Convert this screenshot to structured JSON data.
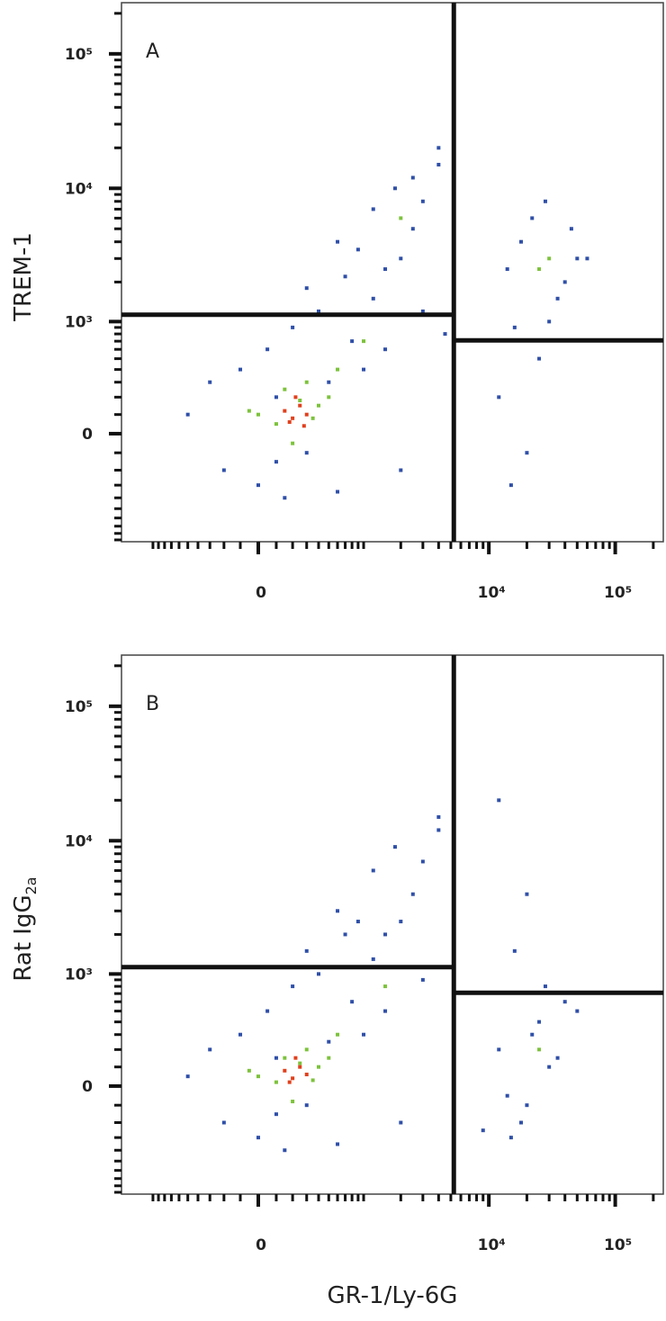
{
  "chart_data": [
    {
      "type": "scatter",
      "panel": "A",
      "ylabel": "TREM-1",
      "xscale": "biexponential",
      "yscale": "biexponential",
      "xlim": [
        -1800,
        240000
      ],
      "ylim": [
        -930,
        240000
      ],
      "xticks": [
        0,
        {
          "value": 10000,
          "label": "10⁴"
        },
        {
          "value": 100000,
          "label": "10⁵"
        }
      ],
      "yticks": [
        0,
        {
          "value": 1000,
          "label": "10³"
        },
        {
          "value": 10000,
          "label": "10⁴"
        },
        {
          "value": 100000,
          "label": "10⁵"
        }
      ],
      "xminor": [
        -1000,
        -900,
        -800,
        -700,
        -600,
        -500,
        -400,
        -300,
        -200,
        -100,
        100,
        200,
        300,
        400,
        500,
        600,
        700,
        800,
        900,
        1000,
        2000,
        3000,
        4000,
        5000,
        6000,
        7000,
        8000,
        9000,
        20000,
        30000,
        40000,
        50000,
        60000,
        70000,
        80000,
        90000,
        200000
      ],
      "yminor": [
        -900,
        -800,
        -700,
        -600,
        -500,
        -400,
        -300,
        -200,
        -100,
        100,
        200,
        300,
        400,
        500,
        600,
        700,
        800,
        900,
        2000,
        3000,
        4000,
        5000,
        6000,
        7000,
        8000,
        9000,
        20000,
        30000,
        40000,
        50000,
        60000,
        70000,
        80000,
        90000,
        200000
      ],
      "gates": {
        "x": 5280,
        "y_left": 1130,
        "y_right": 711
      },
      "series": [
        {
          "color": "#2f4fa8",
          "x": [
            -500,
            -200,
            -100,
            0,
            50,
            100,
            150,
            200,
            300,
            400,
            500,
            600,
            800,
            1000,
            1200,
            1500,
            2000,
            2500,
            3000,
            4000,
            -300,
            100,
            300,
            700,
            1500,
            2000,
            3000,
            4000,
            4500,
            600,
            900,
            1200,
            1800,
            2500,
            12000,
            15000,
            20000,
            25000,
            30000,
            40000,
            50000,
            18000,
            22000,
            35000,
            45000,
            14000,
            28000,
            60000,
            16000
          ],
          "y": [
            100,
            -200,
            400,
            -300,
            600,
            200,
            -400,
            900,
            -100,
            1200,
            300,
            -350,
            700,
            400,
            1500,
            2500,
            3000,
            5000,
            8000,
            15000,
            300,
            -150,
            1800,
            2200,
            600,
            -200,
            1200,
            20000,
            800,
            4000,
            3500,
            7000,
            10000,
            12000,
            200,
            -300,
            -100,
            500,
            1000,
            2000,
            3000,
            4000,
            6000,
            1500,
            5000,
            2500,
            8000,
            3000,
            900
          ]
        },
        {
          "color": "#7dc23c",
          "x": [
            0,
            100,
            150,
            200,
            250,
            300,
            350,
            400,
            500,
            -50,
            600,
            30000,
            25000,
            2000,
            1000
          ],
          "y": [
            100,
            50,
            250,
            -50,
            180,
            300,
            80,
            150,
            200,
            120,
            400,
            3000,
            2500,
            6000,
            700
          ]
        },
        {
          "color": "#e0401c",
          "x": [
            150,
            200,
            250,
            300,
            220,
            180,
            280
          ],
          "y": [
            120,
            80,
            150,
            100,
            200,
            60,
            40
          ]
        }
      ]
    },
    {
      "type": "scatter",
      "panel": "B",
      "ylabel": "Rat IgG",
      "ylabel_sub": "2a",
      "xlabel": "GR-1/Ly-6G",
      "xscale": "biexponential",
      "yscale": "biexponential",
      "xlim": [
        -1800,
        240000
      ],
      "ylim": [
        -930,
        240000
      ],
      "xticks": [
        0,
        {
          "value": 10000,
          "label": "10⁴"
        },
        {
          "value": 100000,
          "label": "10⁵"
        }
      ],
      "yticks": [
        0,
        {
          "value": 1000,
          "label": "10³"
        },
        {
          "value": 10000,
          "label": "10⁴"
        },
        {
          "value": 100000,
          "label": "10⁵"
        }
      ],
      "xminor": [
        -1000,
        -900,
        -800,
        -700,
        -600,
        -500,
        -400,
        -300,
        -200,
        -100,
        100,
        200,
        300,
        400,
        500,
        600,
        700,
        800,
        900,
        1000,
        2000,
        3000,
        4000,
        5000,
        6000,
        7000,
        8000,
        9000,
        20000,
        30000,
        40000,
        50000,
        60000,
        70000,
        80000,
        90000,
        200000
      ],
      "yminor": [
        -900,
        -800,
        -700,
        -600,
        -500,
        -400,
        -300,
        -200,
        -100,
        100,
        200,
        300,
        400,
        500,
        600,
        700,
        800,
        900,
        2000,
        3000,
        4000,
        5000,
        6000,
        7000,
        8000,
        9000,
        20000,
        30000,
        40000,
        50000,
        60000,
        70000,
        80000,
        90000,
        200000
      ],
      "gates": {
        "x": 5280,
        "y_left": 1130,
        "y_right": 711
      },
      "series": [
        {
          "color": "#2f4fa8",
          "x": [
            -500,
            -200,
            -100,
            0,
            50,
            100,
            150,
            200,
            300,
            400,
            500,
            600,
            800,
            1000,
            1200,
            1500,
            2000,
            2500,
            3000,
            4000,
            -300,
            100,
            300,
            700,
            1500,
            2000,
            3000,
            4000,
            600,
            900,
            1200,
            1800,
            12000,
            15000,
            20000,
            25000,
            30000,
            40000,
            18000,
            22000,
            35000,
            14000,
            28000,
            16000,
            12000,
            20000,
            50000,
            9000
          ],
          "y": [
            50,
            -200,
            300,
            -300,
            500,
            150,
            -400,
            800,
            -100,
            1000,
            250,
            -350,
            600,
            300,
            1300,
            2000,
            2500,
            4000,
            7000,
            12000,
            200,
            -150,
            1500,
            2000,
            500,
            -200,
            900,
            15000,
            3000,
            2500,
            6000,
            9000,
            200,
            -300,
            -100,
            400,
            100,
            600,
            -200,
            300,
            150,
            -50,
            800,
            1500,
            20000,
            4000,
            500,
            -250
          ]
        },
        {
          "color": "#7dc23c",
          "x": [
            0,
            100,
            150,
            200,
            250,
            300,
            350,
            400,
            500,
            -50,
            600,
            25000,
            1500
          ],
          "y": [
            50,
            20,
            150,
            -80,
            120,
            200,
            30,
            100,
            150,
            80,
            300,
            200,
            800
          ]
        },
        {
          "color": "#e0401c",
          "x": [
            150,
            200,
            250,
            300,
            220,
            180
          ],
          "y": [
            80,
            40,
            100,
            60,
            150,
            20
          ]
        }
      ]
    }
  ]
}
